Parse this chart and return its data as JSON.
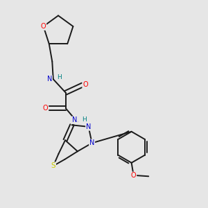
{
  "background_color": "#e6e6e6",
  "bond_color": "#1a1a1a",
  "atom_colors": {
    "N": "#0000cc",
    "O": "#ff0000",
    "S": "#cccc00",
    "H": "#008080",
    "C": "#1a1a1a"
  },
  "figsize": [
    3.0,
    3.0
  ],
  "dpi": 100
}
